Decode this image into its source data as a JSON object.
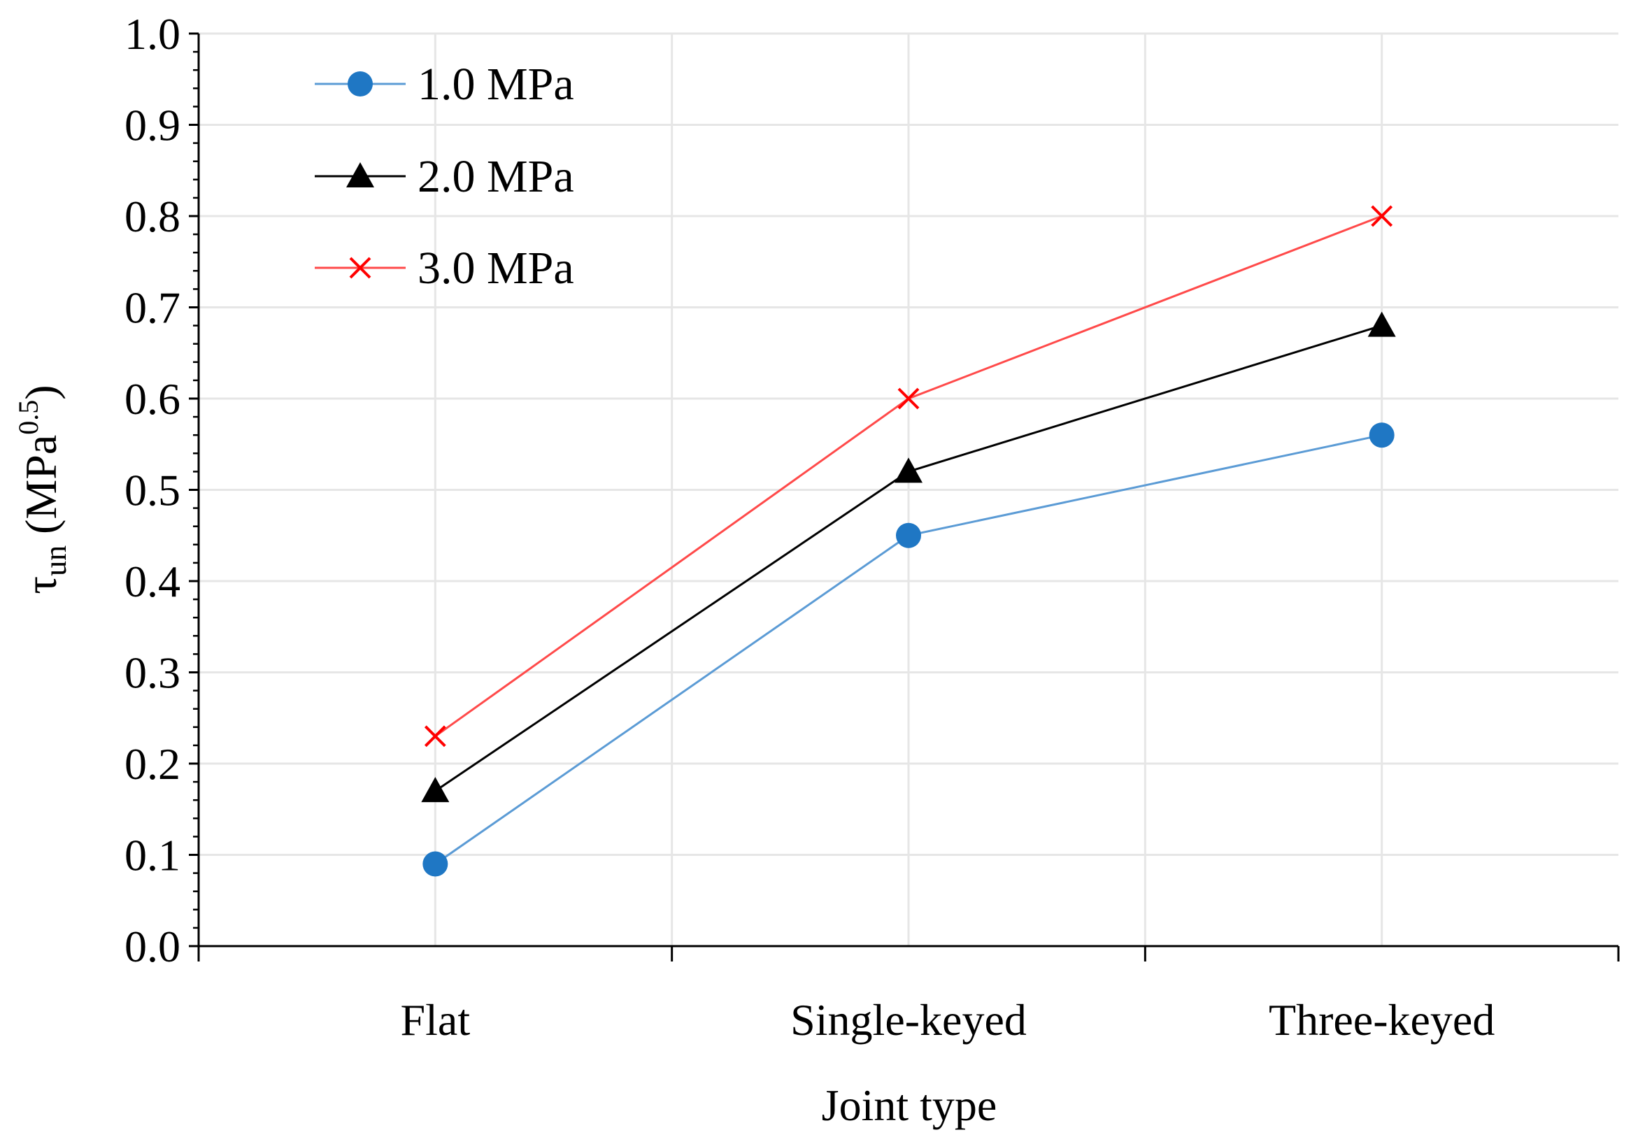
{
  "chart_data": {
    "type": "line",
    "categories": [
      "Flat",
      "Single-keyed",
      "Three-keyed"
    ],
    "series": [
      {
        "name": "1.0 MPa",
        "values": [
          0.09,
          0.45,
          0.56
        ],
        "color": "#1f77c4",
        "marker": "circle"
      },
      {
        "name": "2.0 MPa",
        "values": [
          0.17,
          0.52,
          0.68
        ],
        "color": "#000000",
        "marker": "triangle"
      },
      {
        "name": "3.0 MPa",
        "values": [
          0.23,
          0.6,
          0.8
        ],
        "color": "#ff0000",
        "marker": "x"
      }
    ],
    "title": "",
    "xlabel": "Joint type",
    "ylabel": {
      "symbol": "τ",
      "subscript": "un",
      "unit_open": " (MPa",
      "superscript": "0.5",
      "unit_close": ")"
    },
    "ylim": [
      0,
      1.0
    ],
    "yticks": [
      "0.0",
      "0.1",
      "0.2",
      "0.3",
      "0.4",
      "0.5",
      "0.6",
      "0.7",
      "0.8",
      "0.9",
      "1.0"
    ],
    "grid": true,
    "legend_position": "top-left"
  }
}
